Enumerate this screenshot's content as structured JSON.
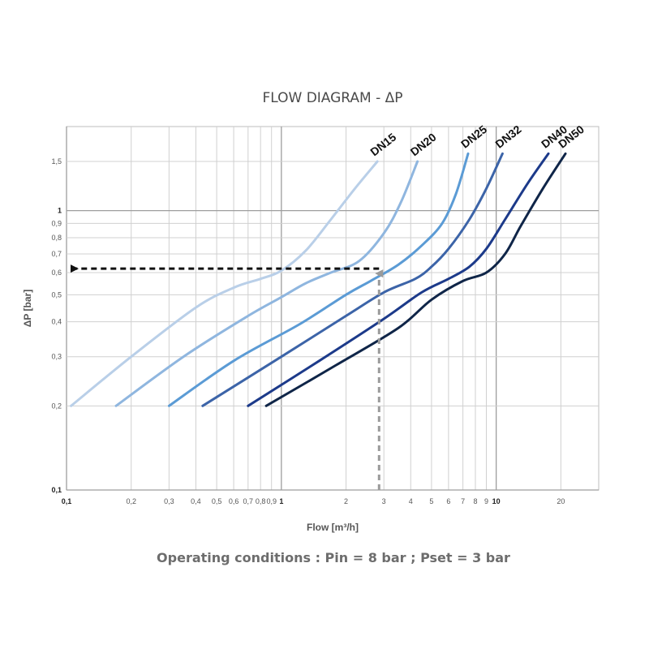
{
  "chart_data": {
    "type": "line",
    "title": "FLOW DIAGRAM - ΔP",
    "xlabel": "Flow [m³/h]",
    "ylabel": "ΔP [bar]",
    "xscale": "log",
    "yscale": "log",
    "xlim": [
      0.1,
      30
    ],
    "ylim": [
      0.1,
      2
    ],
    "grid": true,
    "x_ticks": [
      {
        "value": 0.1,
        "label": "0,1",
        "bold": true
      },
      {
        "value": 0.2,
        "label": "0,2",
        "bold": false
      },
      {
        "value": 0.3,
        "label": "0,3",
        "bold": false
      },
      {
        "value": 0.4,
        "label": "0,4",
        "bold": false
      },
      {
        "value": 0.5,
        "label": "0,5",
        "bold": false
      },
      {
        "value": 0.6,
        "label": "0,6",
        "bold": false
      },
      {
        "value": 0.7,
        "label": "0,7",
        "bold": false
      },
      {
        "value": 0.8,
        "label": "0,8",
        "bold": false
      },
      {
        "value": 0.9,
        "label": "0,9",
        "bold": false
      },
      {
        "value": 1,
        "label": "1",
        "bold": true
      },
      {
        "value": 2,
        "label": "2",
        "bold": false
      },
      {
        "value": 3,
        "label": "3",
        "bold": false
      },
      {
        "value": 4,
        "label": "4",
        "bold": false
      },
      {
        "value": 5,
        "label": "5",
        "bold": false
      },
      {
        "value": 6,
        "label": "6",
        "bold": false
      },
      {
        "value": 7,
        "label": "7",
        "bold": false
      },
      {
        "value": 8,
        "label": "8",
        "bold": false
      },
      {
        "value": 9,
        "label": "9",
        "bold": false
      },
      {
        "value": 10,
        "label": "10",
        "bold": true
      },
      {
        "value": 20,
        "label": "20",
        "bold": false
      }
    ],
    "y_ticks": [
      {
        "value": 0.1,
        "label": "0,1",
        "bold": true
      },
      {
        "value": 0.2,
        "label": "0,2",
        "bold": false
      },
      {
        "value": 0.3,
        "label": "0,3",
        "bold": false
      },
      {
        "value": 0.4,
        "label": "0,4",
        "bold": false
      },
      {
        "value": 0.5,
        "label": "0,5",
        "bold": false
      },
      {
        "value": 0.6,
        "label": "0,6",
        "bold": false
      },
      {
        "value": 0.7,
        "label": "0,7",
        "bold": false
      },
      {
        "value": 0.8,
        "label": "0,8",
        "bold": false
      },
      {
        "value": 0.9,
        "label": "0,9",
        "bold": false
      },
      {
        "value": 1,
        "label": "1",
        "bold": true
      },
      {
        "value": 1.5,
        "label": "1,5",
        "bold": false
      }
    ],
    "series": [
      {
        "name": "DN15",
        "color": "#b9cfe8",
        "points": [
          [
            0.105,
            0.2
          ],
          [
            0.2,
            0.3
          ],
          [
            0.4,
            0.45
          ],
          [
            0.6,
            0.53
          ],
          [
            0.8,
            0.57
          ],
          [
            1.0,
            0.61
          ],
          [
            1.3,
            0.72
          ],
          [
            1.7,
            0.93
          ],
          [
            2.2,
            1.2
          ],
          [
            2.8,
            1.5
          ]
        ]
      },
      {
        "name": "DN20",
        "color": "#8fb6df",
        "points": [
          [
            0.17,
            0.2
          ],
          [
            0.35,
            0.3
          ],
          [
            0.7,
            0.42
          ],
          [
            1.0,
            0.49
          ],
          [
            1.3,
            0.55
          ],
          [
            1.7,
            0.6
          ],
          [
            2.3,
            0.66
          ],
          [
            3.0,
            0.83
          ],
          [
            3.6,
            1.07
          ],
          [
            4.3,
            1.5
          ]
        ]
      },
      {
        "name": "DN25",
        "color": "#5b9bd5",
        "points": [
          [
            0.3,
            0.2
          ],
          [
            0.6,
            0.29
          ],
          [
            1.2,
            0.39
          ],
          [
            2.0,
            0.5
          ],
          [
            2.6,
            0.56
          ],
          [
            3.5,
            0.64
          ],
          [
            4.5,
            0.75
          ],
          [
            5.6,
            0.9
          ],
          [
            6.5,
            1.15
          ],
          [
            7.4,
            1.6
          ]
        ]
      },
      {
        "name": "DN32",
        "color": "#3c64a8",
        "points": [
          [
            0.43,
            0.2
          ],
          [
            1.0,
            0.3
          ],
          [
            2.0,
            0.42
          ],
          [
            3.0,
            0.51
          ],
          [
            4.2,
            0.57
          ],
          [
            5.0,
            0.63
          ],
          [
            6.0,
            0.73
          ],
          [
            7.5,
            0.93
          ],
          [
            9.0,
            1.2
          ],
          [
            10.7,
            1.6
          ]
        ]
      },
      {
        "name": "DN40",
        "color": "#1c3a8a",
        "points": [
          [
            0.7,
            0.2
          ],
          [
            1.5,
            0.29
          ],
          [
            3.0,
            0.41
          ],
          [
            4.5,
            0.51
          ],
          [
            6.0,
            0.57
          ],
          [
            7.5,
            0.63
          ],
          [
            9.0,
            0.73
          ],
          [
            11.0,
            0.93
          ],
          [
            14.0,
            1.25
          ],
          [
            17.5,
            1.6
          ]
        ]
      },
      {
        "name": "DN50",
        "color": "#0f2548",
        "points": [
          [
            0.85,
            0.2
          ],
          [
            1.8,
            0.28
          ],
          [
            3.5,
            0.38
          ],
          [
            5.0,
            0.48
          ],
          [
            7.0,
            0.56
          ],
          [
            9.0,
            0.6
          ],
          [
            11.0,
            0.7
          ],
          [
            13.0,
            0.88
          ],
          [
            16.5,
            1.2
          ],
          [
            21.0,
            1.6
          ]
        ]
      }
    ],
    "annotation": {
      "flow": 2.85,
      "dp": 0.62,
      "description": ""
    }
  },
  "footer": "Operating conditions : Pin = 8 bar ; Pset = 3 bar"
}
